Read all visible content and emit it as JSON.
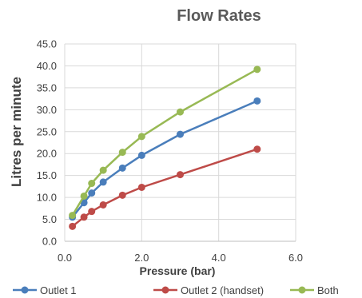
{
  "chart_data": {
    "type": "scatter",
    "title": "Flow Rates",
    "xlabel": "Pressure (bar)",
    "ylabel": "Litres per minute",
    "xlim": [
      0,
      6
    ],
    "ylim": [
      0,
      45
    ],
    "x_ticks": [
      "0.0",
      "2.0",
      "4.0",
      "6.0"
    ],
    "y_ticks": [
      "0.0",
      "5.0",
      "10.0",
      "15.0",
      "20.0",
      "25.0",
      "30.0",
      "35.0",
      "40.0",
      "45.0"
    ],
    "grid": true,
    "legend_position": "bottom",
    "series": [
      {
        "name": "Outlet 1",
        "color": "#4a7ebb",
        "x": [
          0.2,
          0.5,
          0.7,
          1.0,
          1.5,
          2.0,
          3.0,
          5.0
        ],
        "y": [
          5.5,
          8.8,
          11.0,
          13.5,
          16.7,
          19.6,
          24.4,
          32.0
        ]
      },
      {
        "name": "Outlet 2 (handset)",
        "color": "#be4b48",
        "x": [
          0.2,
          0.5,
          0.7,
          1.0,
          1.5,
          2.0,
          3.0,
          5.0
        ],
        "y": [
          3.4,
          5.5,
          6.8,
          8.3,
          10.5,
          12.3,
          15.2,
          21.0
        ]
      },
      {
        "name": "Both",
        "color": "#98b954",
        "x": [
          0.2,
          0.5,
          0.7,
          1.0,
          1.5,
          2.0,
          3.0,
          5.0
        ],
        "y": [
          5.9,
          10.3,
          13.2,
          16.2,
          20.3,
          23.9,
          29.5,
          39.2
        ]
      }
    ]
  }
}
